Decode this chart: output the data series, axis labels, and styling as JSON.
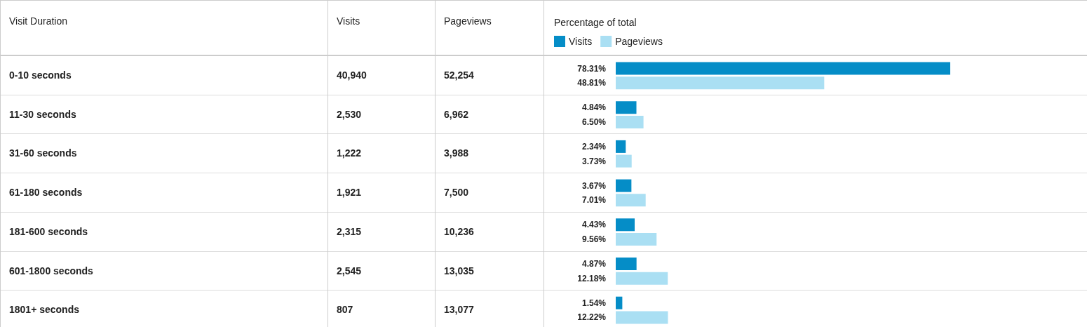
{
  "chart_data": [
    {
      "type": "other",
      "ylabel": "Visit Duration",
      "categories": [
        "0-10 seconds",
        "11-30 seconds",
        "31-60 seconds",
        "61-180 seconds",
        "181-600 seconds",
        "601-1800 seconds",
        "1801+ seconds"
      ],
      "series": [
        {
          "name": "Visits",
          "values": [
            40940,
            2530,
            1222,
            1921,
            2315,
            2545,
            807
          ],
          "value_labels": [
            "40,940",
            "2,530",
            "1,222",
            "1,921",
            "2,315",
            "2,545",
            "807"
          ]
        },
        {
          "name": "Pageviews",
          "values": [
            52254,
            6962,
            3988,
            7500,
            10236,
            13035,
            13077
          ],
          "value_labels": [
            "52,254",
            "6,962",
            "3,988",
            "7,500",
            "10,236",
            "13,035",
            "13,077"
          ]
        }
      ]
    },
    {
      "type": "bar",
      "orientation": "horizontal",
      "title": "Percentage of total",
      "categories": [
        null,
        null,
        null,
        null,
        null,
        null,
        null
      ],
      "series": [
        {
          "name": "Visits",
          "color": "#058dc7",
          "values": [
            78.31,
            4.84,
            2.34,
            3.67,
            4.43,
            4.87,
            1.54
          ],
          "value_labels": [
            "78.31%",
            "4.84%",
            "2.34%",
            "3.67%",
            "4.43%",
            "4.87%",
            "1.54%"
          ]
        },
        {
          "name": "Pageviews",
          "color": "#aadff3",
          "values": [
            48.81,
            6.5,
            3.73,
            7.01,
            9.56,
            12.18,
            12.22
          ],
          "value_labels": [
            "48.81%",
            "6.50%",
            "3.73%",
            "7.01%",
            "9.56%",
            "12.18%",
            "12.22%"
          ]
        }
      ],
      "legend": "top left",
      "tick_labels": false,
      "grid": false
    }
  ]
}
